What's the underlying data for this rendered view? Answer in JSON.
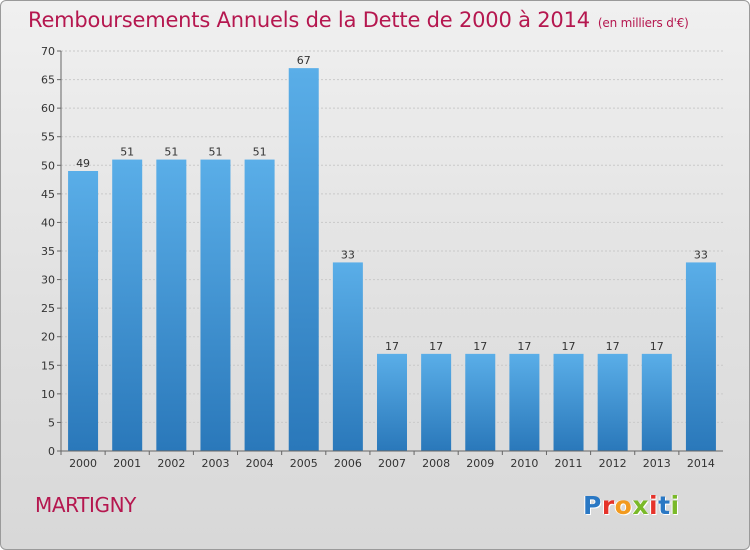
{
  "header": {
    "title": "Remboursements Annuels de la Dette de 2000 à 2014",
    "unit": "(en milliers d'€)"
  },
  "footer": {
    "commune": "MARTIGNY",
    "logo_letters": [
      "P",
      "r",
      "o",
      "x",
      "i",
      "t",
      "i"
    ]
  },
  "colors": {
    "title": "#b5174f",
    "bar_light": "#5aaee8",
    "bar_dark": "#2a78ba"
  },
  "chart_data": {
    "type": "bar",
    "title": "Remboursements Annuels de la Dette de 2000 à 2014",
    "subtitle": "(en milliers d'€)",
    "xlabel": "",
    "ylabel": "",
    "categories": [
      "2000",
      "2001",
      "2002",
      "2003",
      "2004",
      "2005",
      "2006",
      "2007",
      "2008",
      "2009",
      "2010",
      "2011",
      "2012",
      "2013",
      "2014"
    ],
    "values": [
      49,
      51,
      51,
      51,
      51,
      67,
      33,
      17,
      17,
      17,
      17,
      17,
      17,
      17,
      33
    ],
    "ylim": [
      0,
      70
    ],
    "yticks": [
      0,
      5,
      10,
      15,
      20,
      25,
      30,
      35,
      40,
      45,
      50,
      55,
      60,
      65,
      70
    ],
    "grid": true,
    "legend": "none"
  }
}
